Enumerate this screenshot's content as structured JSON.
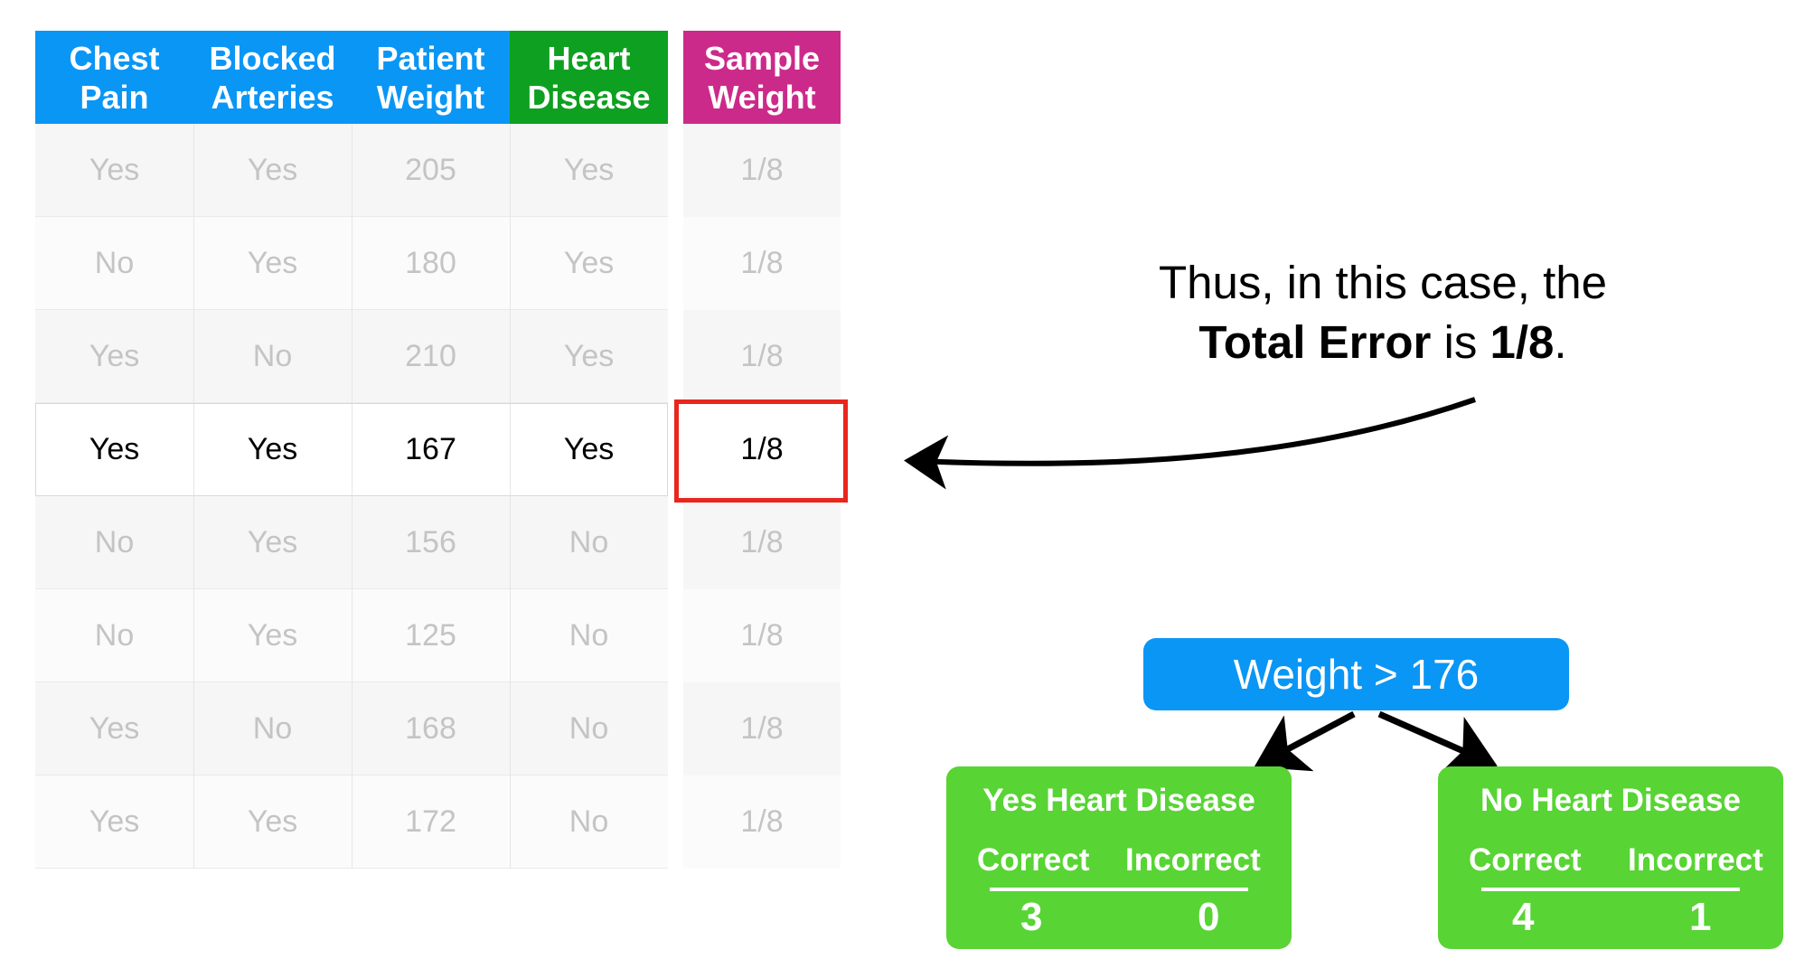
{
  "table": {
    "headers": [
      {
        "label": "Chest\nPain",
        "color": "#0a96f5"
      },
      {
        "label": "Blocked\nArteries",
        "color": "#0a96f5"
      },
      {
        "label": "Patient\nWeight",
        "color": "#0a96f5"
      },
      {
        "label": "Heart\nDisease",
        "color": "#0ea020"
      },
      {
        "label": "Sample\nWeight",
        "color": "#cc2a8a"
      }
    ],
    "rows": [
      [
        "Yes",
        "Yes",
        "205",
        "Yes",
        "1/8"
      ],
      [
        "No",
        "Yes",
        "180",
        "Yes",
        "1/8"
      ],
      [
        "Yes",
        "No",
        "210",
        "Yes",
        "1/8"
      ],
      [
        "Yes",
        "Yes",
        "167",
        "Yes",
        "1/8"
      ],
      [
        "No",
        "Yes",
        "156",
        "No",
        "1/8"
      ],
      [
        "No",
        "Yes",
        "125",
        "No",
        "1/8"
      ],
      [
        "Yes",
        "No",
        "168",
        "No",
        "1/8"
      ],
      [
        "Yes",
        "Yes",
        "172",
        "No",
        "1/8"
      ]
    ],
    "highlighted_row": 4,
    "highlight_color": "#e8261e"
  },
  "note": {
    "line1": "Thus, in this case, the",
    "bold1": "Total Error",
    "mid": " is ",
    "bold2": "1/8",
    "end": "."
  },
  "tree": {
    "root": "Weight > 176",
    "root_color": "#0a96f5",
    "leaf_color": "#58d434",
    "leaves": [
      {
        "title": "Yes Heart Disease",
        "correct_label": "Correct",
        "incorrect_label": "Incorrect",
        "correct": "3",
        "incorrect": "0"
      },
      {
        "title": "No Heart Disease",
        "correct_label": "Correct",
        "incorrect_label": "Incorrect",
        "correct": "4",
        "incorrect": "1"
      }
    ]
  }
}
